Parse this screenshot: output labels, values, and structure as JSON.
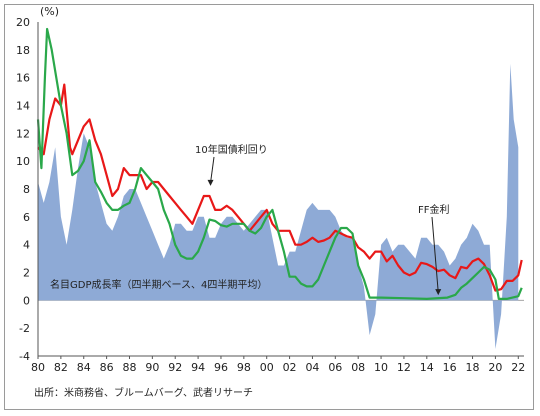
{
  "chart_data": {
    "type": "line",
    "unit_label": "(%)",
    "x_tick_labels": [
      "80",
      "82",
      "84",
      "86",
      "88",
      "90",
      "92",
      "94",
      "96",
      "98",
      "00",
      "02",
      "04",
      "06",
      "08",
      "10",
      "12",
      "14",
      "16",
      "18",
      "20",
      "22"
    ],
    "xlim": [
      1980,
      2022.5
    ],
    "ylim": [
      -4,
      20
    ],
    "y_ticks": [
      -4,
      -2,
      0,
      2,
      4,
      6,
      8,
      10,
      12,
      14,
      16,
      18,
      20
    ],
    "area_label": "名目GDP成長率（四半期ベース、4四半期平均）",
    "source": "出所：米商務省、ブルームバーグ、武者リサーチ",
    "colors": {
      "gdp_area": "#8eaad6",
      "treasury": "#e81818",
      "ff": "#2aa84a"
    },
    "annotations": [
      {
        "text": "10年国債利回り",
        "point": [
          1995,
          8.3
        ]
      },
      {
        "text": "FF金利",
        "point": [
          2015,
          0.3
        ]
      }
    ],
    "series": [
      {
        "name": "名目GDP成長率（四半期ベース、4四半期平均）",
        "kind": "area",
        "points": [
          [
            1980,
            8.5
          ],
          [
            1980.5,
            7.0
          ],
          [
            1981,
            8.5
          ],
          [
            1981.5,
            11.0
          ],
          [
            1982,
            6.0
          ],
          [
            1982.5,
            4.0
          ],
          [
            1983,
            6.5
          ],
          [
            1983.5,
            9.5
          ],
          [
            1984,
            12.0
          ],
          [
            1984.5,
            11.0
          ],
          [
            1985,
            8.5
          ],
          [
            1985.5,
            7.0
          ],
          [
            1986,
            5.5
          ],
          [
            1986.5,
            5.0
          ],
          [
            1987,
            6.0
          ],
          [
            1987.5,
            7.5
          ],
          [
            1988,
            8.0
          ],
          [
            1988.5,
            8.0
          ],
          [
            1989,
            7.0
          ],
          [
            1989.5,
            6.0
          ],
          [
            1990,
            5.0
          ],
          [
            1990.5,
            4.0
          ],
          [
            1991,
            3.0
          ],
          [
            1991.5,
            4.0
          ],
          [
            1992,
            5.5
          ],
          [
            1992.5,
            5.5
          ],
          [
            1993,
            5.0
          ],
          [
            1993.5,
            5.0
          ],
          [
            1994,
            6.0
          ],
          [
            1994.5,
            6.0
          ],
          [
            1995,
            4.5
          ],
          [
            1995.5,
            4.5
          ],
          [
            1996,
            5.5
          ],
          [
            1996.5,
            6.0
          ],
          [
            1997,
            6.0
          ],
          [
            1997.5,
            5.5
          ],
          [
            1998,
            5.0
          ],
          [
            1998.5,
            5.5
          ],
          [
            1999,
            6.0
          ],
          [
            1999.5,
            6.5
          ],
          [
            2000,
            6.5
          ],
          [
            2000.5,
            4.5
          ],
          [
            2001,
            2.5
          ],
          [
            2001.5,
            2.5
          ],
          [
            2002,
            3.5
          ],
          [
            2002.5,
            3.5
          ],
          [
            2003,
            5.0
          ],
          [
            2003.5,
            6.5
          ],
          [
            2004,
            7.0
          ],
          [
            2004.5,
            6.5
          ],
          [
            2005,
            6.5
          ],
          [
            2005.5,
            6.5
          ],
          [
            2006,
            6.0
          ],
          [
            2006.5,
            5.0
          ],
          [
            2007,
            4.5
          ],
          [
            2007.5,
            4.5
          ],
          [
            2008,
            2.5
          ],
          [
            2008.5,
            1.0
          ],
          [
            2009,
            -2.5
          ],
          [
            2009.5,
            -1.0
          ],
          [
            2010,
            4.0
          ],
          [
            2010.5,
            4.5
          ],
          [
            2011,
            3.5
          ],
          [
            2011.5,
            4.0
          ],
          [
            2012,
            4.0
          ],
          [
            2012.5,
            3.5
          ],
          [
            2013,
            3.0
          ],
          [
            2013.5,
            4.5
          ],
          [
            2014,
            4.5
          ],
          [
            2014.5,
            4.0
          ],
          [
            2015,
            4.0
          ],
          [
            2015.5,
            3.5
          ],
          [
            2016,
            2.5
          ],
          [
            2016.5,
            3.0
          ],
          [
            2017,
            4.0
          ],
          [
            2017.5,
            4.5
          ],
          [
            2018,
            5.5
          ],
          [
            2018.5,
            5.0
          ],
          [
            2019,
            4.0
          ],
          [
            2019.5,
            4.0
          ],
          [
            2020,
            -3.5
          ],
          [
            2020.5,
            -1.0
          ],
          [
            2021,
            6.0
          ],
          [
            2021.3,
            17.0
          ],
          [
            2021.6,
            13.0
          ],
          [
            2022,
            11.0
          ]
        ]
      },
      {
        "name": "10年国債利回り",
        "kind": "line",
        "points": [
          [
            1980,
            11.0
          ],
          [
            1980.5,
            10.5
          ],
          [
            1981,
            13.0
          ],
          [
            1981.5,
            14.5
          ],
          [
            1982,
            14.0
          ],
          [
            1982.3,
            15.5
          ],
          [
            1982.8,
            11.0
          ],
          [
            1983,
            10.5
          ],
          [
            1983.5,
            11.5
          ],
          [
            1984,
            12.5
          ],
          [
            1984.5,
            13.0
          ],
          [
            1985,
            11.5
          ],
          [
            1985.5,
            10.5
          ],
          [
            1986,
            9.0
          ],
          [
            1986.5,
            7.5
          ],
          [
            1987,
            8.0
          ],
          [
            1987.5,
            9.5
          ],
          [
            1988,
            9.0
          ],
          [
            1988.5,
            9.0
          ],
          [
            1989,
            9.0
          ],
          [
            1989.5,
            8.0
          ],
          [
            1990,
            8.5
          ],
          [
            1990.5,
            8.5
          ],
          [
            1991,
            8.0
          ],
          [
            1991.5,
            7.5
          ],
          [
            1992,
            7.0
          ],
          [
            1992.5,
            6.5
          ],
          [
            1993,
            6.0
          ],
          [
            1993.5,
            5.5
          ],
          [
            1994,
            6.5
          ],
          [
            1994.5,
            7.5
          ],
          [
            1995,
            7.5
          ],
          [
            1995.5,
            6.5
          ],
          [
            1996,
            6.5
          ],
          [
            1996.5,
            6.8
          ],
          [
            1997,
            6.5
          ],
          [
            1997.5,
            6.0
          ],
          [
            1998,
            5.5
          ],
          [
            1998.5,
            5.0
          ],
          [
            1999,
            5.5
          ],
          [
            1999.5,
            6.0
          ],
          [
            2000,
            6.5
          ],
          [
            2000.5,
            5.5
          ],
          [
            2001,
            5.0
          ],
          [
            2001.5,
            5.0
          ],
          [
            2002,
            5.0
          ],
          [
            2002.5,
            4.0
          ],
          [
            2003,
            4.0
          ],
          [
            2003.5,
            4.2
          ],
          [
            2004,
            4.5
          ],
          [
            2004.5,
            4.2
          ],
          [
            2005,
            4.3
          ],
          [
            2005.5,
            4.5
          ],
          [
            2006,
            5.0
          ],
          [
            2006.5,
            4.8
          ],
          [
            2007,
            4.6
          ],
          [
            2007.5,
            4.5
          ],
          [
            2008,
            3.8
          ],
          [
            2008.5,
            3.5
          ],
          [
            2009,
            3.0
          ],
          [
            2009.5,
            3.5
          ],
          [
            2010,
            3.5
          ],
          [
            2010.5,
            2.8
          ],
          [
            2011,
            3.2
          ],
          [
            2011.5,
            2.5
          ],
          [
            2012,
            2.0
          ],
          [
            2012.5,
            1.8
          ],
          [
            2013,
            2.0
          ],
          [
            2013.5,
            2.7
          ],
          [
            2014,
            2.6
          ],
          [
            2014.5,
            2.4
          ],
          [
            2015,
            2.1
          ],
          [
            2015.5,
            2.2
          ],
          [
            2016,
            1.8
          ],
          [
            2016.5,
            1.6
          ],
          [
            2017,
            2.4
          ],
          [
            2017.5,
            2.3
          ],
          [
            2018,
            2.8
          ],
          [
            2018.5,
            3.0
          ],
          [
            2019,
            2.6
          ],
          [
            2019.5,
            1.8
          ],
          [
            2020,
            0.7
          ],
          [
            2020.5,
            0.8
          ],
          [
            2021,
            1.4
          ],
          [
            2021.5,
            1.4
          ],
          [
            2022,
            1.8
          ],
          [
            2022.3,
            2.9
          ]
        ]
      },
      {
        "name": "FF金利",
        "kind": "line",
        "points": [
          [
            1980,
            13.0
          ],
          [
            1980.3,
            9.5
          ],
          [
            1980.6,
            16.0
          ],
          [
            1980.8,
            19.5
          ],
          [
            1981.2,
            18.0
          ],
          [
            1981.6,
            16.0
          ],
          [
            1982,
            14.0
          ],
          [
            1982.5,
            12.0
          ],
          [
            1983,
            9.0
          ],
          [
            1983.5,
            9.3
          ],
          [
            1984,
            10.0
          ],
          [
            1984.5,
            11.5
          ],
          [
            1985,
            8.5
          ],
          [
            1985.5,
            7.8
          ],
          [
            1986,
            7.0
          ],
          [
            1986.5,
            6.5
          ],
          [
            1987,
            6.5
          ],
          [
            1987.5,
            6.8
          ],
          [
            1988,
            7.0
          ],
          [
            1988.5,
            8.0
          ],
          [
            1989,
            9.5
          ],
          [
            1989.5,
            9.0
          ],
          [
            1990,
            8.5
          ],
          [
            1990.5,
            8.0
          ],
          [
            1991,
            6.5
          ],
          [
            1991.5,
            5.5
          ],
          [
            1992,
            4.0
          ],
          [
            1992.5,
            3.2
          ],
          [
            1993,
            3.0
          ],
          [
            1993.5,
            3.0
          ],
          [
            1994,
            3.5
          ],
          [
            1994.5,
            4.5
          ],
          [
            1995,
            5.8
          ],
          [
            1995.5,
            5.7
          ],
          [
            1996,
            5.4
          ],
          [
            1996.5,
            5.3
          ],
          [
            1997,
            5.5
          ],
          [
            1997.5,
            5.5
          ],
          [
            1998,
            5.5
          ],
          [
            1998.5,
            5.0
          ],
          [
            1999,
            4.8
          ],
          [
            1999.5,
            5.2
          ],
          [
            2000,
            6.0
          ],
          [
            2000.5,
            6.5
          ],
          [
            2001,
            5.0
          ],
          [
            2001.5,
            3.5
          ],
          [
            2002,
            1.7
          ],
          [
            2002.5,
            1.7
          ],
          [
            2003,
            1.2
          ],
          [
            2003.5,
            1.0
          ],
          [
            2004,
            1.0
          ],
          [
            2004.5,
            1.5
          ],
          [
            2005,
            2.5
          ],
          [
            2005.5,
            3.5
          ],
          [
            2006,
            4.5
          ],
          [
            2006.5,
            5.2
          ],
          [
            2007,
            5.2
          ],
          [
            2007.5,
            4.8
          ],
          [
            2008,
            2.5
          ],
          [
            2008.5,
            1.5
          ],
          [
            2009,
            0.2
          ],
          [
            2010,
            0.2
          ],
          [
            2012,
            0.15
          ],
          [
            2014,
            0.1
          ],
          [
            2015.8,
            0.2
          ],
          [
            2016.5,
            0.4
          ],
          [
            2017,
            0.9
          ],
          [
            2017.5,
            1.2
          ],
          [
            2018,
            1.6
          ],
          [
            2018.5,
            2.0
          ],
          [
            2019,
            2.4
          ],
          [
            2019.5,
            2.2
          ],
          [
            2020,
            1.5
          ],
          [
            2020.3,
            0.1
          ],
          [
            2021,
            0.1
          ],
          [
            2022,
            0.3
          ],
          [
            2022.3,
            0.9
          ]
        ]
      }
    ]
  }
}
